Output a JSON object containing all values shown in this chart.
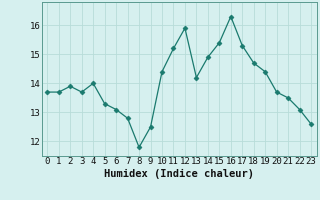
{
  "x": [
    0,
    1,
    2,
    3,
    4,
    5,
    6,
    7,
    8,
    9,
    10,
    11,
    12,
    13,
    14,
    15,
    16,
    17,
    18,
    19,
    20,
    21,
    22,
    23
  ],
  "y": [
    13.7,
    13.7,
    13.9,
    13.7,
    14.0,
    13.3,
    13.1,
    12.8,
    11.8,
    12.5,
    14.4,
    15.2,
    15.9,
    14.2,
    14.9,
    15.4,
    16.3,
    15.3,
    14.7,
    14.4,
    13.7,
    13.5,
    13.1,
    12.6
  ],
  "line_color": "#1a7a6e",
  "marker": "D",
  "marker_size": 2.5,
  "bg_color": "#d6f0ef",
  "grid_color": "#b8dcd9",
  "xlabel": "Humidex (Indice chaleur)",
  "ylabel": "",
  "title": "",
  "ylim": [
    11.5,
    16.8
  ],
  "yticks": [
    12,
    13,
    14,
    15,
    16
  ],
  "xticks": [
    0,
    1,
    2,
    3,
    4,
    5,
    6,
    7,
    8,
    9,
    10,
    11,
    12,
    13,
    14,
    15,
    16,
    17,
    18,
    19,
    20,
    21,
    22,
    23
  ],
  "xlabel_fontsize": 7.5,
  "tick_fontsize": 6.5
}
